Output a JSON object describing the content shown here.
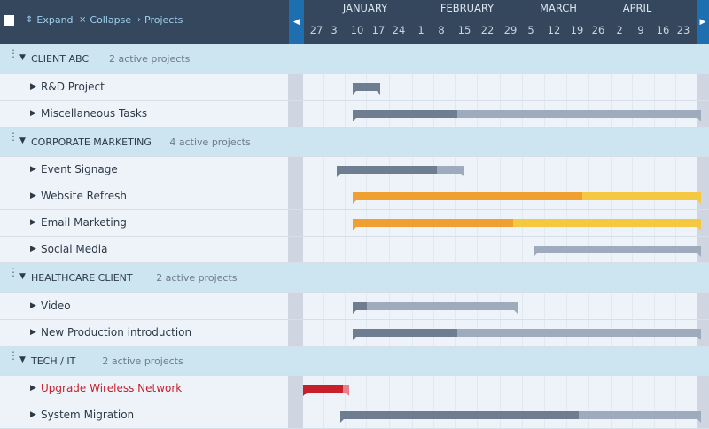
{
  "toolbar": {
    "expand_label": "Expand",
    "collapse_label": "Collapse",
    "projects_label": "Projects",
    "expand_icon": "chevrons-up-down-icon",
    "collapse_icon": "chevrons-collapse-icon",
    "projects_icon": "chevron-right-icon"
  },
  "timeline": {
    "months": [
      {
        "label": "JANUARY"
      },
      {
        "label": "FEBRUARY"
      },
      {
        "label": "MARCH"
      },
      {
        "label": "APRIL"
      }
    ],
    "weeks": [
      "27",
      "3",
      "10",
      "17",
      "24",
      "1",
      "8",
      "15",
      "22",
      "29",
      "5",
      "12",
      "19",
      "26",
      "2",
      "9",
      "16",
      "23"
    ]
  },
  "colors": {
    "done_gray": "#6f7d91",
    "todo_gray": "#9eabbd",
    "done_orange": "#f0a030",
    "todo_orange": "#f5c842",
    "done_red": "#c8202a",
    "todo_red": "#e8808a",
    "group_bg": "#cde4f1",
    "header_bg": "#34475c",
    "accent": "#1e6fb0"
  },
  "groups": [
    {
      "name": "CLIENT ABC",
      "count": "2 active projects",
      "tasks": [
        {
          "name": "R&D Project",
          "start": "Jan 11",
          "end": "Jan 20",
          "progress": 1,
          "color": "gray"
        },
        {
          "name": "Miscellaneous Tasks",
          "start": "Jan 11",
          "end": "May 3",
          "progress": 0.3,
          "color": "gray"
        }
      ]
    },
    {
      "name": "CORPORATE MARKETING",
      "count": "4 active projects",
      "tasks": [
        {
          "name": "Event Signage",
          "start": "Jan 6",
          "end": "Feb 16",
          "progress": 0.78,
          "color": "gray"
        },
        {
          "name": "Website Refresh",
          "start": "Jan 11",
          "end": "May 3",
          "progress": 0.66,
          "color": "orange"
        },
        {
          "name": "Email Marketing",
          "start": "Jan 11",
          "end": "May 3",
          "progress": 0.46,
          "color": "orange"
        },
        {
          "name": "Social Media",
          "start": "Mar 10",
          "end": "May 3",
          "progress": 0,
          "color": "gray"
        }
      ]
    },
    {
      "name": "HEALTHCARE CLIENT",
      "count": "2 active projects",
      "tasks": [
        {
          "name": "Video",
          "start": "Jan 11",
          "end": "Mar 5",
          "progress": 0.09,
          "color": "gray"
        },
        {
          "name": "New Production introduction",
          "start": "Jan 11",
          "end": "May 3",
          "progress": 0.3,
          "color": "gray"
        }
      ]
    },
    {
      "name": "TECH / IT",
      "count": "2 active projects",
      "tasks": [
        {
          "name": "Upgrade Wireless Network",
          "start": "Dec 26",
          "end": "Jan 10",
          "progress": 0.87,
          "color": "red",
          "overdue": true
        },
        {
          "name": "System Migration",
          "start": "Jan 7",
          "end": "May 3",
          "progress": 0.66,
          "color": "gray"
        }
      ]
    }
  ]
}
